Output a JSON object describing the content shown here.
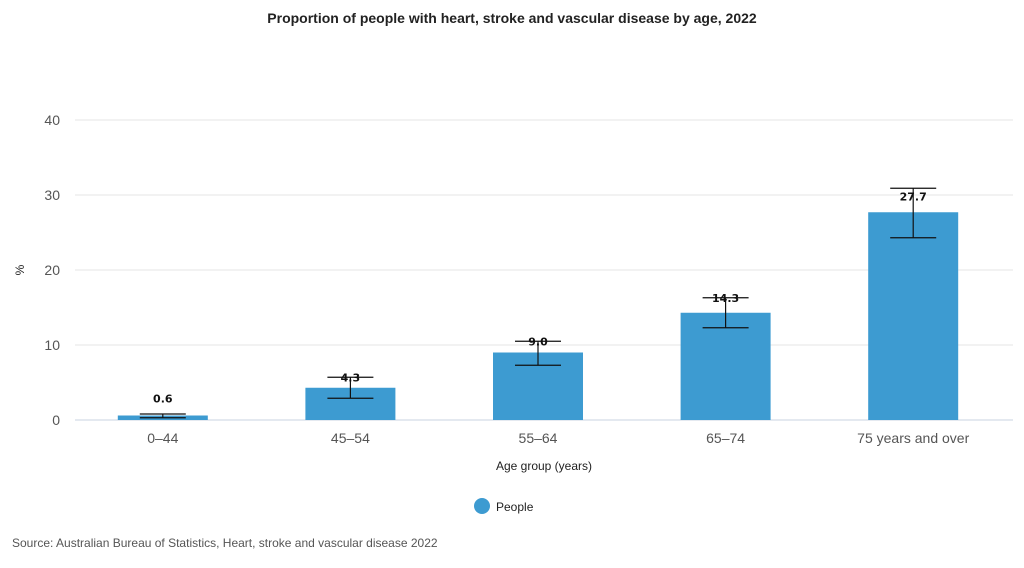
{
  "source": "Source: Australian Bureau of Statistics, Heart, stroke and vascular disease 2022",
  "chart_data": {
    "type": "bar",
    "title": "Proportion of people with heart, stroke and vascular disease by age, 2022",
    "xlabel": "Age group (years)",
    "ylabel": "%",
    "ylim": [
      0,
      40
    ],
    "yticks": [
      0,
      10,
      20,
      30,
      40
    ],
    "grid": true,
    "legend_position": "bottom-center",
    "categories": [
      "0–44",
      "45–54",
      "55–64",
      "65–74",
      "75 years and over"
    ],
    "series": [
      {
        "name": "People",
        "color": "#3d9bd1",
        "values": [
          0.6,
          4.3,
          9.0,
          14.3,
          27.7
        ],
        "labels": [
          "0.6",
          "4.3",
          "9.0",
          "14.3",
          "27.7"
        ],
        "error_low": [
          0.3,
          2.9,
          7.3,
          12.3,
          24.3
        ],
        "error_high": [
          0.8,
          5.7,
          10.5,
          16.3,
          30.9
        ]
      }
    ]
  }
}
